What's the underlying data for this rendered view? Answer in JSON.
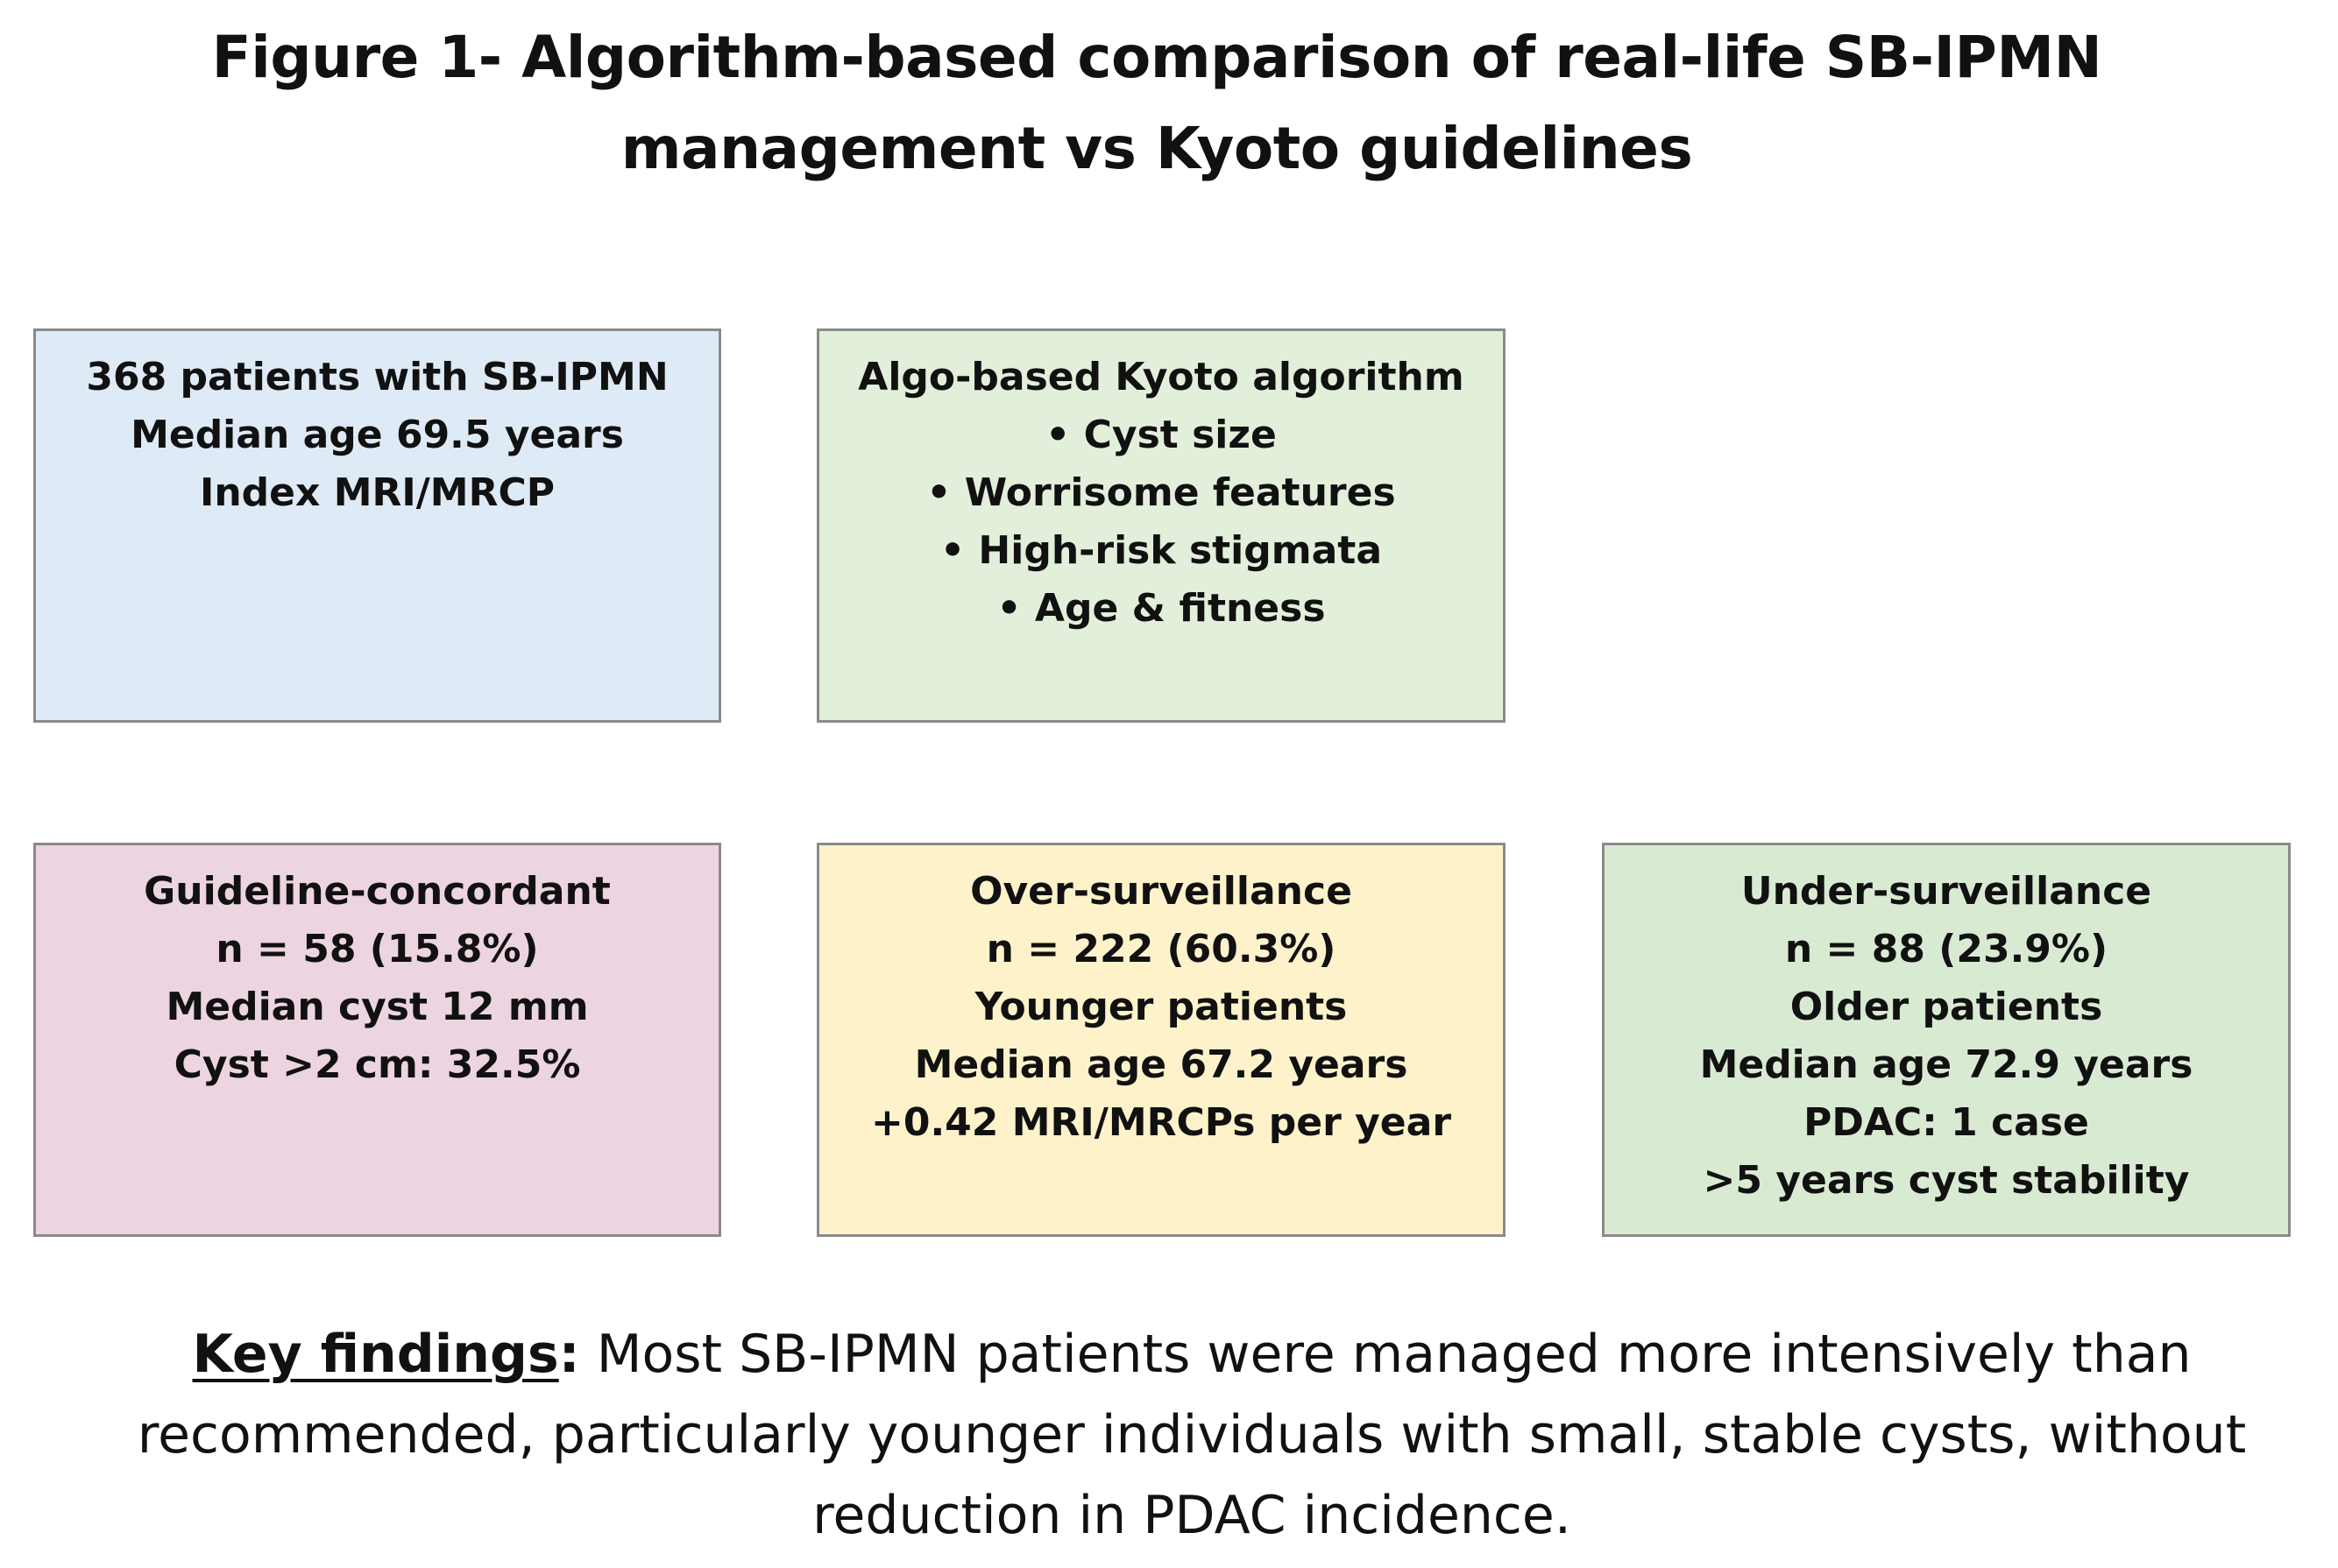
{
  "title": {
    "line1": "Figure 1- Algorithm-based comparison of real-life SB-IPMN",
    "line2": "management vs Kyoto guidelines"
  },
  "colors": {
    "cohort_fill": "#deeaf6",
    "algo_fill": "#e2efda",
    "concordant_fill": "#ecd4e0",
    "over_fill": "#fef2cb",
    "under_fill": "#d9ead3",
    "border": "#8a8a8a"
  },
  "boxes": {
    "cohort": {
      "lines": [
        "368 patients with SB-IPMN",
        "Median age 69.5 years",
        "Index MRI/MRCP"
      ]
    },
    "algorithm": {
      "lines": [
        "Algo-based Kyoto algorithm",
        "• Cyst size",
        "• Worrisome features",
        "• High-risk stigmata",
        "• Age & fitness"
      ]
    },
    "concordant": {
      "lines": [
        "Guideline-concordant",
        "n = 58 (15.8%)",
        "Median cyst 12 mm",
        "Cyst >2 cm: 32.5%"
      ]
    },
    "over": {
      "lines": [
        "Over-surveillance",
        "n = 222 (60.3%)",
        "Younger patients",
        "Median age 67.2 years",
        "+0.42 MRI/MRCPs per year"
      ]
    },
    "under": {
      "lines": [
        "Under-surveillance",
        "n = 88 (23.9%)",
        "Older patients",
        "Median age 72.9 years",
        "PDAC: 1 case",
        ">5 years cyst stability"
      ]
    }
  },
  "key_findings": {
    "label": "Key findings",
    "colon": ":",
    "line1_rest": " Most SB-IPMN patients were managed more intensively than",
    "line2": "recommended, particularly younger individuals with small, stable cysts, without",
    "line3": "reduction in PDAC incidence."
  }
}
